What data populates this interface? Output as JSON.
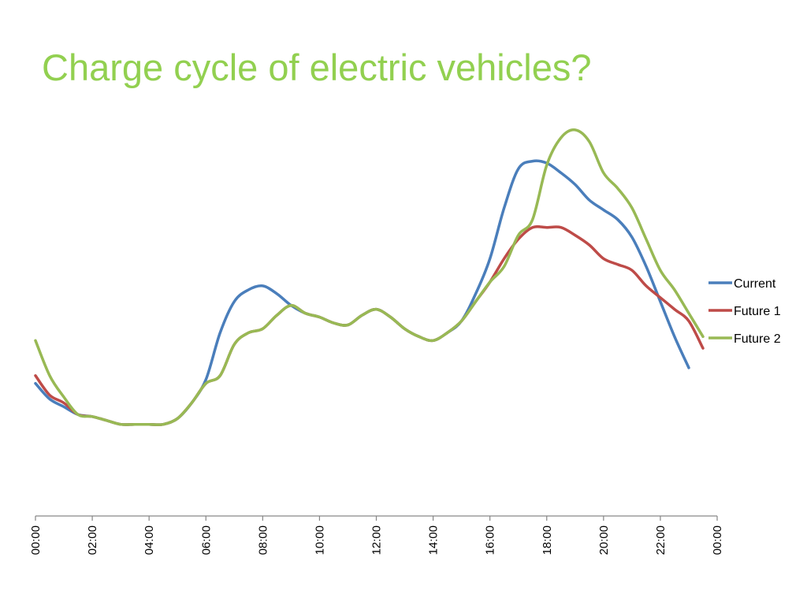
{
  "slide": {
    "title": "Charge cycle of electric vehicles?",
    "title_color": "#92D050"
  },
  "chart_data": {
    "type": "line",
    "title": "",
    "xlabel": "",
    "ylabel": "",
    "x_ticks": [
      "00:00",
      "02:00",
      "04:00",
      "06:00",
      "08:00",
      "10:00",
      "12:00",
      "14:00",
      "16:00",
      "18:00",
      "20:00",
      "22:00",
      "00:00"
    ],
    "x_hours": [
      0,
      0.5,
      1,
      1.5,
      2,
      2.5,
      3,
      3.5,
      4,
      4.5,
      5,
      5.5,
      6,
      6.5,
      7,
      7.5,
      8,
      8.5,
      9,
      9.5,
      10,
      10.5,
      11,
      11.5,
      12,
      12.5,
      13,
      13.5,
      14,
      14.5,
      15,
      15.5,
      16,
      16.5,
      17,
      17.5,
      18,
      18.5,
      19,
      19.5,
      20,
      20.5,
      21,
      21.5,
      22,
      22.5,
      23,
      23.5
    ],
    "ylim": [
      0,
      100
    ],
    "y_axis_visible": false,
    "grid": false,
    "legend_position": "right",
    "series": [
      {
        "name": "Current",
        "color": "#4A7EBB",
        "values": [
          34,
          30,
          28,
          26,
          25.5,
          24.5,
          23.5,
          23.5,
          23.5,
          23.5,
          25,
          29,
          35,
          47,
          55,
          58,
          59,
          57,
          54,
          52,
          51,
          49.5,
          49,
          51.5,
          53,
          51,
          48,
          46,
          45,
          47,
          50,
          57,
          66,
          79,
          89,
          91,
          90.5,
          88,
          85,
          81,
          78.5,
          76,
          71.5,
          64,
          55,
          46,
          38,
          null
        ]
      },
      {
        "name": "Future 1",
        "color": "#BE4B48",
        "values": [
          36,
          31,
          29,
          26,
          25.5,
          24.5,
          23.5,
          23.5,
          23.5,
          23.5,
          25,
          29,
          34,
          36,
          44,
          47,
          48,
          51.5,
          54,
          52,
          51,
          49.5,
          49,
          51.5,
          53,
          51,
          48,
          46,
          45,
          47,
          50,
          55,
          60,
          66,
          71,
          74,
          74,
          74,
          72,
          69.5,
          66,
          64.5,
          63,
          59,
          56,
          53,
          50,
          43
        ]
      },
      {
        "name": "Future 2",
        "color": "#98B954",
        "values": [
          45,
          36,
          30.5,
          26,
          25.5,
          24.5,
          23.5,
          23.5,
          23.5,
          23.5,
          25,
          29,
          34,
          36,
          44,
          47,
          48,
          51.5,
          54,
          52,
          51,
          49.5,
          49,
          51.5,
          53,
          51,
          48,
          46,
          45,
          47,
          50,
          55,
          60,
          64,
          72,
          76,
          90,
          97,
          99,
          96,
          88,
          84,
          79,
          71,
          63,
          58,
          52,
          46
        ]
      }
    ]
  }
}
